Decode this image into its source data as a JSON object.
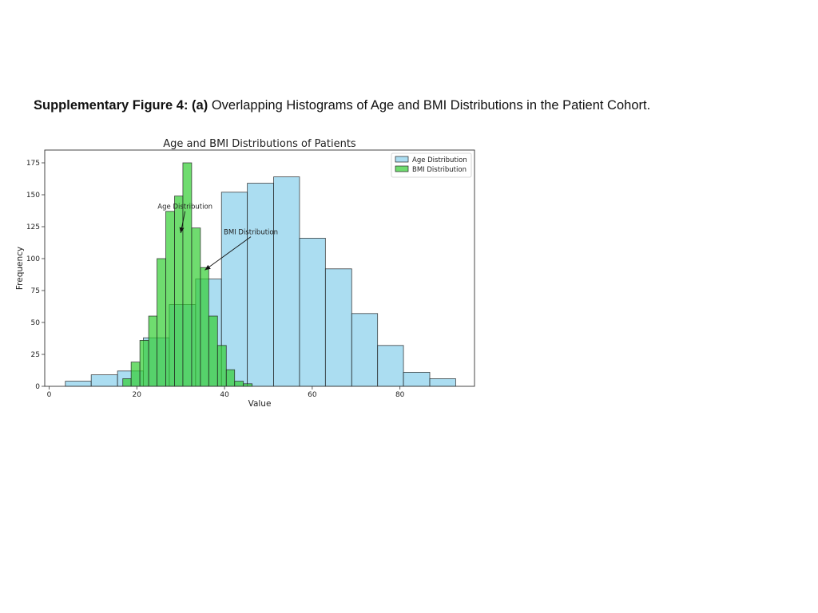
{
  "caption": {
    "lead": "Supplementary Figure 4: (a)",
    "text": "Overlapping Histograms of Age and BMI Distributions in the Patient Cohort."
  },
  "chart_data": {
    "type": "bar",
    "title": "Age and BMI Distributions of Patients",
    "xlabel": "Value",
    "ylabel": "Frequency",
    "xlim": [
      -1,
      97
    ],
    "ylim": [
      0,
      185
    ],
    "xticks": [
      0,
      20,
      40,
      60,
      80
    ],
    "yticks": [
      0,
      25,
      50,
      75,
      100,
      125,
      150,
      175
    ],
    "grid": false,
    "legend_position": "top-right",
    "series": [
      {
        "name": "Age Distribution",
        "color": "#87ceeb",
        "opacity": 0.7,
        "edgecolor": "#222222",
        "bins": [
          {
            "x0": 3.7,
            "x1": 9.6,
            "value": 4
          },
          {
            "x0": 9.6,
            "x1": 15.6,
            "value": 9
          },
          {
            "x0": 15.6,
            "x1": 21.5,
            "value": 12
          },
          {
            "x0": 21.5,
            "x1": 27.4,
            "value": 38
          },
          {
            "x0": 27.4,
            "x1": 33.4,
            "value": 64
          },
          {
            "x0": 33.4,
            "x1": 39.3,
            "value": 84
          },
          {
            "x0": 39.3,
            "x1": 45.2,
            "value": 152
          },
          {
            "x0": 45.2,
            "x1": 51.2,
            "value": 159
          },
          {
            "x0": 51.2,
            "x1": 57.1,
            "value": 164
          },
          {
            "x0": 57.1,
            "x1": 63.0,
            "value": 116
          },
          {
            "x0": 63.0,
            "x1": 69.0,
            "value": 92
          },
          {
            "x0": 69.0,
            "x1": 74.9,
            "value": 57
          },
          {
            "x0": 74.9,
            "x1": 80.8,
            "value": 32
          },
          {
            "x0": 80.8,
            "x1": 86.8,
            "value": 11
          },
          {
            "x0": 86.8,
            "x1": 92.7,
            "value": 6
          }
        ]
      },
      {
        "name": "BMI Distribution",
        "color": "#32cd32",
        "opacity": 0.7,
        "edgecolor": "#222222",
        "bins": [
          {
            "x0": 16.8,
            "x1": 18.7,
            "value": 6
          },
          {
            "x0": 18.7,
            "x1": 20.7,
            "value": 19
          },
          {
            "x0": 20.7,
            "x1": 22.7,
            "value": 36
          },
          {
            "x0": 22.7,
            "x1": 24.6,
            "value": 55
          },
          {
            "x0": 24.6,
            "x1": 26.6,
            "value": 100
          },
          {
            "x0": 26.6,
            "x1": 28.6,
            "value": 137
          },
          {
            "x0": 28.6,
            "x1": 30.5,
            "value": 149
          },
          {
            "x0": 30.5,
            "x1": 32.5,
            "value": 175
          },
          {
            "x0": 32.5,
            "x1": 34.5,
            "value": 124
          },
          {
            "x0": 34.5,
            "x1": 36.4,
            "value": 93
          },
          {
            "x0": 36.4,
            "x1": 38.4,
            "value": 55
          },
          {
            "x0": 38.4,
            "x1": 40.4,
            "value": 32
          },
          {
            "x0": 40.4,
            "x1": 42.3,
            "value": 13
          },
          {
            "x0": 42.3,
            "x1": 44.3,
            "value": 4
          },
          {
            "x0": 44.3,
            "x1": 46.3,
            "value": 2
          }
        ]
      }
    ],
    "annotations": [
      {
        "text": "Age Distribution",
        "text_x": 31,
        "text_y": 139,
        "arrow_x": 30,
        "arrow_y": 120
      },
      {
        "text": "BMI Distribution",
        "text_x": 46,
        "text_y": 119,
        "arrow_x": 35.5,
        "arrow_y": 91
      }
    ]
  }
}
